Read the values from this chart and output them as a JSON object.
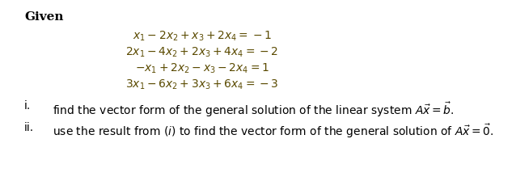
{
  "bg_color": "#ffffff",
  "text_color": "#000000",
  "eq_color": "#5a4a00",
  "given_label": "Given",
  "eq1": "$x_1 - 2x_2 + x_3 + 2x_4 = -1$",
  "eq2": "$2x_1 - 4x_2 + 2x_3 + 4x_4 = -2$",
  "eq3": "$-x_1 + 2x_2 - x_3 - 2x_4 = 1$",
  "eq4": "$3x_1 - 6x_2 + 3x_3 + 6x_4 = -3$",
  "item_i_label": "i.",
  "item_i_text": "find the vector form of the general solution of the linear system $A\\vec{x} = \\vec{b}$.",
  "item_ii_label": "ii.",
  "item_ii_text": "use the result from $(i)$ to find the vector form of the general solution of $A\\vec{x} = \\vec{0}$.",
  "figsize": [
    6.38,
    2.19
  ],
  "dpi": 100,
  "eq_fontsize": 10,
  "text_fontsize": 10,
  "given_fontsize": 11
}
